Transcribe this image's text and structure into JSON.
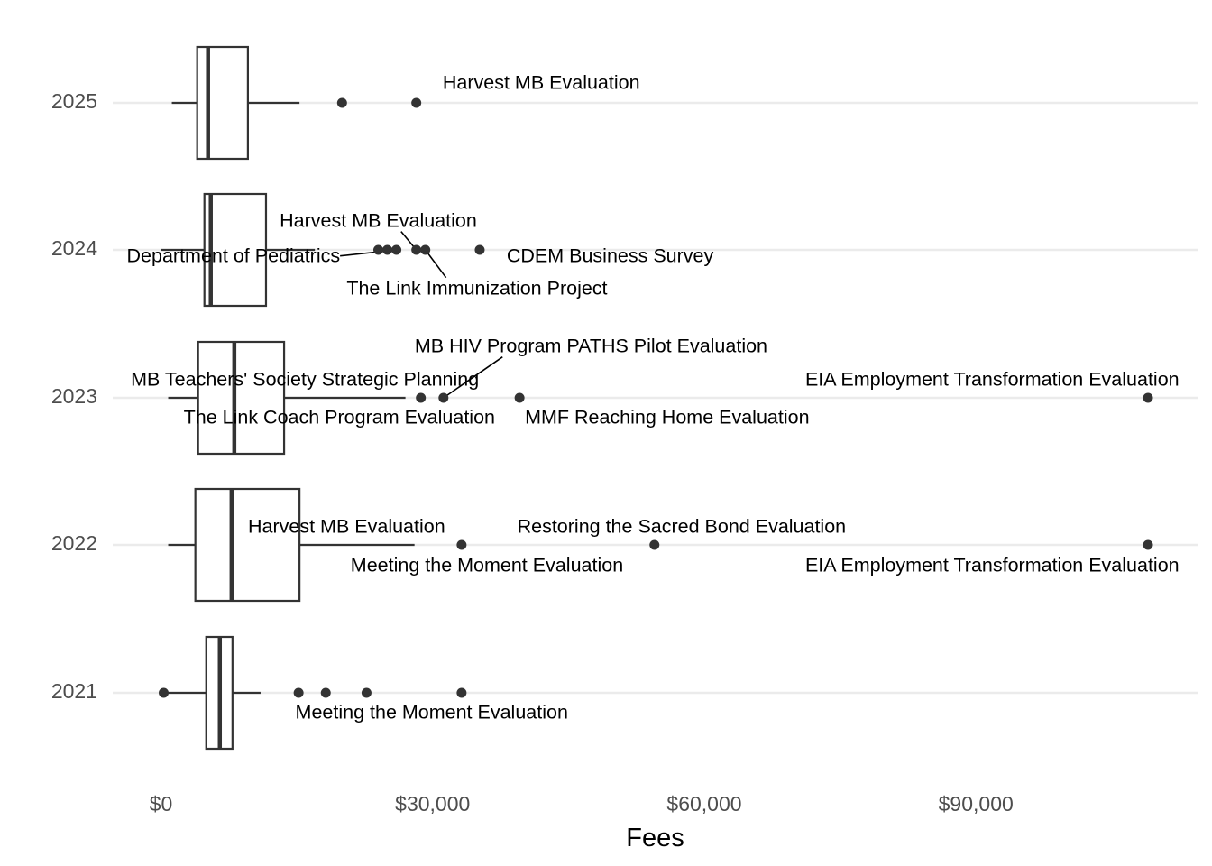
{
  "chart_data": {
    "type": "boxplot",
    "orientation": "horizontal",
    "title": "",
    "xlabel": "Fees",
    "ylabel": "",
    "xlim": [
      -5000,
      114500
    ],
    "x_ticks": [
      {
        "value": 0,
        "label": "$0"
      },
      {
        "value": 30000,
        "label": "$30,000"
      },
      {
        "value": 60000,
        "label": "$60,000"
      },
      {
        "value": 90000,
        "label": "$90,000"
      }
    ],
    "grid": "major gridlines on category axis only",
    "categories": [
      "2025",
      "2024",
      "2023",
      "2022",
      "2021"
    ],
    "boxes": [
      {
        "category": "2025",
        "whisker_low": 1200,
        "q1": 4000,
        "median": 5200,
        "q3": 9600,
        "whisker_high": 15300
      },
      {
        "category": "2024",
        "whisker_low": 0,
        "q1": 4800,
        "median": 5500,
        "q3": 11600,
        "whisker_high": 17000
      },
      {
        "category": "2023",
        "whisker_low": 800,
        "q1": 4100,
        "median": 8100,
        "q3": 13600,
        "whisker_high": 27000
      },
      {
        "category": "2022",
        "whisker_low": 800,
        "q1": 3800,
        "median": 7800,
        "q3": 15300,
        "whisker_high": 28000
      },
      {
        "category": "2021",
        "whisker_low": 300,
        "q1": 5000,
        "median": 6500,
        "q3": 7900,
        "whisker_high": 11000
      }
    ],
    "outliers": [
      {
        "category": "2025",
        "x": 20000
      },
      {
        "category": "2025",
        "x": 28200
      },
      {
        "category": "2024",
        "x": 24000
      },
      {
        "category": "2024",
        "x": 25000
      },
      {
        "category": "2024",
        "x": 26000
      },
      {
        "category": "2024",
        "x": 28200
      },
      {
        "category": "2024",
        "x": 29200
      },
      {
        "category": "2024",
        "x": 35200
      },
      {
        "category": "2023",
        "x": 28700
      },
      {
        "category": "2023",
        "x": 31200
      },
      {
        "category": "2023",
        "x": 39600
      },
      {
        "category": "2023",
        "x": 109000
      },
      {
        "category": "2022",
        "x": 33200
      },
      {
        "category": "2022",
        "x": 54500
      },
      {
        "category": "2022",
        "x": 109000
      },
      {
        "category": "2021",
        "x": 300
      },
      {
        "category": "2021",
        "x": 15200
      },
      {
        "category": "2021",
        "x": 18200
      },
      {
        "category": "2021",
        "x": 22700
      },
      {
        "category": "2021",
        "x": 33200
      }
    ],
    "annotations": [
      {
        "category": "2025",
        "label": "Harvest MB Evaluation",
        "point_x": 28200,
        "label_x": 42000,
        "dy": -21
      },
      {
        "category": "2024",
        "label": "Harvest MB Evaluation",
        "point_x": 28200,
        "label_x": 24000,
        "dy": -31
      },
      {
        "category": "2024",
        "label": "Department of Pediatrics",
        "point_x": 26000,
        "label_x": 8000,
        "dy": 8
      },
      {
        "category": "2024",
        "label": "CDEM Business Survey",
        "point_x": 35200,
        "label_x": 49600,
        "dy": 8
      },
      {
        "category": "2024",
        "label": "The Link Immunization Project",
        "point_x": 29200,
        "label_x": 34900,
        "dy": 44
      },
      {
        "category": "2023",
        "label": "MB HIV Program PATHS Pilot Evaluation",
        "point_x": 31200,
        "label_x": 47500,
        "dy": -56
      },
      {
        "category": "2023",
        "label": "MB Teachers' Society Strategic Planning",
        "point_x": 28700,
        "label_x": 15900,
        "dy": -19
      },
      {
        "category": "2023",
        "label": "EIA Employment Transformation Evaluation",
        "point_x": 109000,
        "label_x": 91800,
        "dy": -19
      },
      {
        "category": "2023",
        "label": "The Link Coach Program Evaluation",
        "point_x": 28700,
        "label_x": 19700,
        "dy": 23
      },
      {
        "category": "2023",
        "label": "MMF Reaching Home Evaluation",
        "point_x": 39600,
        "label_x": 55900,
        "dy": 23
      },
      {
        "category": "2022",
        "label": "Harvest MB Evaluation",
        "point_x": 33200,
        "label_x": 20500,
        "dy": -19
      },
      {
        "category": "2022",
        "label": "Restoring the Sacred Bond Evaluation",
        "point_x": 54500,
        "label_x": 57500,
        "dy": -19
      },
      {
        "category": "2022",
        "label": "Meeting the Moment Evaluation",
        "point_x": 33200,
        "label_x": 36000,
        "dy": 24
      },
      {
        "category": "2022",
        "label": "EIA Employment Transformation Evaluation",
        "point_x": 109000,
        "label_x": 91800,
        "dy": 24
      },
      {
        "category": "2021",
        "label": "Meeting the Moment Evaluation",
        "point_x": 33200,
        "label_x": 29900,
        "dy": 23
      }
    ],
    "leader_lines": [
      {
        "category": "2024",
        "from_x": 28200,
        "label_index": 1
      },
      {
        "category": "2024",
        "from_x": 26000,
        "label_index": 2
      },
      {
        "category": "2024",
        "from_x": 29200,
        "label_index": 4
      },
      {
        "category": "2023",
        "from_x": 31200,
        "label_index": 5
      }
    ]
  }
}
